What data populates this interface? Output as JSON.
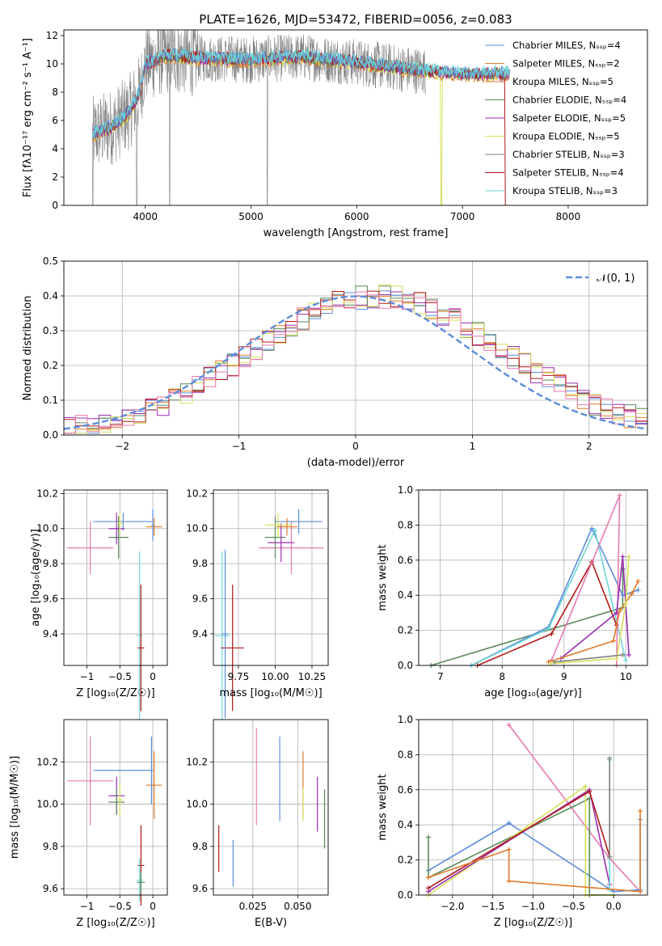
{
  "title": "PLATE=1626, MJD=53472, FIBERID=0056, z=0.083",
  "colors": {
    "chabrier_miles": "#5b8ddb",
    "salpeter_miles": "#e07b2c",
    "kroupa_miles": "#e07b2c",
    "chabrier_elodie": "#5a8a5a",
    "salpeter_elodie": "#9a2fb0",
    "kroupa_elodie": "#d6e05a",
    "chabrier_stelib": "#808080",
    "salpeter_stelib": "#b01818",
    "kroupa_stelib": "#6fd6d6",
    "pink": "#e87ab0",
    "normal_curve": "#5b8ddb"
  },
  "chart_data": [
    {
      "type": "line",
      "xlabel": "wavelength [Angstrom, rest frame]",
      "ylabel": "Flux [fλ10⁻¹⁷ erg cm⁻² s⁻¹ A⁻¹]",
      "xlim": [
        3230,
        8750
      ],
      "ylim": [
        0,
        12.4
      ],
      "xticks": [
        4000,
        5000,
        6000,
        7000,
        8000
      ],
      "yticks": [
        0,
        2,
        4,
        6,
        8,
        10,
        12
      ],
      "legend_position": "top-right",
      "series": [
        {
          "name": "Chabrier MILES, N_SSP=4",
          "color": "#5b8ddb"
        },
        {
          "name": "Salpeter MILES, N_SSP=2",
          "color": "#e07b2c"
        },
        {
          "name": "Kroupa MILES, N_SSP=5",
          "color": "#e07b2c"
        },
        {
          "name": "Chabrier ELODIE, N_SSP=4",
          "color": "#5a8a5a"
        },
        {
          "name": "Salpeter ELODIE, N_SSP=5",
          "color": "#9a2fb0"
        },
        {
          "name": "Kroupa ELODIE, N_SSP=5",
          "color": "#d6e05a"
        },
        {
          "name": "Chabrier STELIB, N_SSP=3",
          "color": "#808080"
        },
        {
          "name": "Salpeter STELIB, N_SSP=4",
          "color": "#b01818"
        },
        {
          "name": "Kroupa STELIB, N_SSP=3",
          "color": "#6fd6d6"
        }
      ],
      "continuum": {
        "x": [
          3500,
          3700,
          3850,
          3950,
          4000,
          4200,
          4500,
          5000,
          5500,
          6000,
          6500,
          7000,
          7500
        ],
        "y": [
          5.0,
          5.6,
          6.6,
          8.0,
          10.0,
          10.6,
          10.4,
          10.3,
          10.5,
          10.1,
          9.6,
          9.3,
          9.3
        ]
      },
      "dropouts_x": [
        3505,
        3920,
        4230,
        5155,
        6800,
        7420
      ]
    },
    {
      "type": "histogram",
      "xlabel": "(data-model)/error",
      "ylabel": "Normed distribution",
      "xlim": [
        -2.5,
        2.5
      ],
      "ylim": [
        0,
        0.5
      ],
      "xticks": [
        -2,
        -1,
        0,
        1,
        2
      ],
      "yticks": [
        0.0,
        0.1,
        0.2,
        0.3,
        0.4,
        0.5
      ],
      "legend_position": "top-right",
      "legend_label": "𝒩(0, 1)",
      "bin_width": 0.1,
      "bin_start": -2.5,
      "reference": [
        0.018,
        0.022,
        0.028,
        0.035,
        0.043,
        0.052,
        0.063,
        0.075,
        0.089,
        0.104,
        0.121,
        0.14,
        0.16,
        0.181,
        0.204,
        0.226,
        0.249,
        0.271,
        0.293,
        0.314,
        0.333,
        0.35,
        0.365,
        0.378,
        0.388,
        0.395,
        0.399,
        0.399,
        0.395,
        0.388,
        0.378,
        0.365,
        0.35,
        0.333,
        0.314,
        0.293,
        0.271,
        0.249,
        0.226,
        0.204,
        0.181,
        0.16,
        0.14,
        0.121,
        0.104,
        0.089,
        0.075,
        0.063,
        0.052,
        0.043
      ]
    },
    {
      "type": "scatter",
      "xlabel": "Z [log₁₀(Z/Z☉)]",
      "ylabel": "age  [log₁₀(age/yr)]",
      "xlim": [
        -1.35,
        0.22
      ],
      "ylim": [
        9.22,
        10.22
      ],
      "xticks": [
        -1,
        -0.5,
        0
      ],
      "xticklabels": [
        "−1",
        "−0.5",
        "0"
      ],
      "yticks": [
        9.4,
        9.6,
        9.8,
        10.0,
        10.2
      ],
      "points": [
        {
          "x": -0.95,
          "y": 9.89,
          "xerr": 0.35,
          "yerr": 0.15,
          "color": "#e87ab0"
        },
        {
          "x": -0.45,
          "y": 10.04,
          "xerr": 0.45,
          "yerr": 0.05,
          "color": "#5b8ddb"
        },
        {
          "x": -0.52,
          "y": 9.95,
          "xerr": 0.15,
          "yerr": 0.12,
          "color": "#5a8a5a"
        },
        {
          "x": -0.55,
          "y": 10.0,
          "xerr": 0.12,
          "yerr": 0.09,
          "color": "#9a2fb0"
        },
        {
          "x": -0.5,
          "y": 10.03,
          "xerr": 0.05,
          "yerr": 0.06,
          "color": "#d6e05a"
        },
        {
          "x": -0.2,
          "y": 9.39,
          "xerr": 0.05,
          "yerr": 0.48,
          "color": "#6fd6d6"
        },
        {
          "x": -0.18,
          "y": 9.32,
          "xerr": 0.05,
          "yerr": 0.36,
          "color": "#b01818"
        },
        {
          "x": 0.02,
          "y": 10.01,
          "xerr": 0.12,
          "yerr": 0.05,
          "color": "#e07b2c"
        },
        {
          "x": 0.0,
          "y": 10.02,
          "xerr": 0.02,
          "yerr": 0.09,
          "color": "#5b8ddb"
        }
      ]
    },
    {
      "type": "scatter",
      "xlabel": "mass [log₁₀(M/M☉)]",
      "ylabel": "",
      "xlim": [
        9.58,
        10.36
      ],
      "ylim": [
        9.22,
        10.22
      ],
      "xticks": [
        9.75,
        10.0,
        10.25
      ],
      "xticklabels": [
        "9.75",
        "10.00",
        "10.25"
      ],
      "yticks": [
        9.4,
        9.6,
        9.8,
        10.0,
        10.2
      ],
      "points": [
        {
          "x": 10.11,
          "y": 9.89,
          "xerr": 0.22,
          "yerr": 0.15,
          "color": "#e87ab0"
        },
        {
          "x": 10.16,
          "y": 10.04,
          "xerr": 0.16,
          "yerr": 0.07,
          "color": "#5b8ddb"
        },
        {
          "x": 10.0,
          "y": 9.95,
          "xerr": 0.07,
          "yerr": 0.12,
          "color": "#5a8a5a"
        },
        {
          "x": 10.04,
          "y": 9.92,
          "xerr": 0.09,
          "yerr": 0.11,
          "color": "#9a2fb0"
        },
        {
          "x": 10.02,
          "y": 10.02,
          "xerr": 0.09,
          "yerr": 0.07,
          "color": "#d6e05a"
        },
        {
          "x": 9.64,
          "y": 9.39,
          "xerr": 0.05,
          "yerr": 0.48,
          "color": "#6fd6d6"
        },
        {
          "x": 9.71,
          "y": 9.32,
          "xerr": 0.08,
          "yerr": 0.36,
          "color": "#b01818"
        },
        {
          "x": 10.08,
          "y": 10.01,
          "xerr": 0.07,
          "yerr": 0.05,
          "color": "#e07b2c"
        },
        {
          "x": 9.66,
          "y": 9.4,
          "xerr": 0.02,
          "yerr": 0.48,
          "color": "#5b8ddb"
        }
      ]
    },
    {
      "type": "line",
      "xlabel": "age  [log₁₀(age/yr)]",
      "ylabel": "mass weight",
      "xlim": [
        6.65,
        10.35
      ],
      "ylim": [
        0,
        1
      ],
      "xticks": [
        7,
        8,
        9,
        10
      ],
      "yticks": [
        0.0,
        0.2,
        0.4,
        0.6,
        0.8,
        1.0
      ],
      "series": [
        {
          "color": "#5a8a5a",
          "x": [
            6.85,
            9.95,
            9.95
          ],
          "y": [
            0.0,
            0.33,
            0.55
          ]
        },
        {
          "color": "#5b8ddb",
          "x": [
            7.5,
            8.75,
            9.45,
            9.95,
            10.2
          ],
          "y": [
            0.0,
            0.22,
            0.78,
            0.4,
            0.43
          ]
        },
        {
          "color": "#6fd6d6",
          "x": [
            7.5,
            8.75,
            9.5,
            10.0
          ],
          "y": [
            0.0,
            0.21,
            0.77,
            0.03
          ]
        },
        {
          "color": "#b01818",
          "x": [
            7.6,
            8.8,
            9.45,
            9.85
          ],
          "y": [
            0.0,
            0.18,
            0.59,
            0.23
          ]
        },
        {
          "color": "#e87ab0",
          "x": [
            8.8,
            9.9,
            9.85
          ],
          "y": [
            0.03,
            0.97,
            0.0
          ]
        },
        {
          "color": "#9a2fb0",
          "x": [
            8.95,
            9.85,
            9.95,
            10.05
          ],
          "y": [
            0.04,
            0.3,
            0.62,
            0.06
          ]
        },
        {
          "color": "#e07b2c",
          "x": [
            8.75,
            9.8,
            9.9,
            10.1,
            10.2
          ],
          "y": [
            0.02,
            0.14,
            0.31,
            0.41,
            0.48
          ]
        },
        {
          "color": "#d6e05a",
          "x": [
            8.8,
            9.85,
            10.0,
            10.05
          ],
          "y": [
            0.01,
            0.04,
            0.35,
            0.62
          ]
        },
        {
          "color": "#808080",
          "x": [
            8.85,
            9.95
          ],
          "y": [
            0.02,
            0.06
          ]
        }
      ]
    },
    {
      "type": "scatter",
      "xlabel": "Z [log₁₀(Z/Z☉)]",
      "ylabel": "mass [log₁₀(M/M☉)]",
      "xlim": [
        -1.35,
        0.22
      ],
      "ylim": [
        9.57,
        10.4
      ],
      "xticks": [
        -1,
        -0.5,
        0
      ],
      "xticklabels": [
        "−1",
        "−0.5",
        "0"
      ],
      "yticks": [
        9.6,
        9.8,
        10.0,
        10.2
      ],
      "points": [
        {
          "x": -0.95,
          "y": 10.11,
          "xerr": 0.35,
          "yerr": 0.21,
          "color": "#e87ab0"
        },
        {
          "x": -0.45,
          "y": 10.16,
          "xerr": 0.45,
          "yerr": 0.0,
          "color": "#5b8ddb"
        },
        {
          "x": -0.55,
          "y": 10.04,
          "xerr": 0.12,
          "yerr": 0.09,
          "color": "#9a2fb0"
        },
        {
          "x": -0.55,
          "y": 10.01,
          "xerr": 0.12,
          "yerr": 0.06,
          "color": "#5a8a5a"
        },
        {
          "x": -0.5,
          "y": 10.02,
          "xerr": 0.05,
          "yerr": 0.08,
          "color": "#d6e05a"
        },
        {
          "x": -0.18,
          "y": 9.71,
          "xerr": 0.05,
          "yerr": 0.19,
          "color": "#b01818"
        },
        {
          "x": -0.2,
          "y": 9.64,
          "xerr": 0.05,
          "yerr": 0.1,
          "color": "#6fd6d6"
        },
        {
          "x": -0.18,
          "y": 9.63,
          "xerr": 0.06,
          "yerr": 0.05,
          "color": "#5a8a5a"
        },
        {
          "x": 0.02,
          "y": 10.09,
          "xerr": 0.12,
          "yerr": 0.16,
          "color": "#e07b2c"
        },
        {
          "x": -0.02,
          "y": 10.16,
          "xerr": 0.02,
          "yerr": 0.16,
          "color": "#5b8ddb"
        }
      ]
    },
    {
      "type": "errorbar",
      "xlabel": "E(B-V)",
      "ylabel": "",
      "xlim": [
        0.003,
        0.067
      ],
      "ylim": [
        9.57,
        10.4
      ],
      "xticks": [
        0.025,
        0.05
      ],
      "xticklabels": [
        "0.025",
        "0.050"
      ],
      "yticks": [
        9.6,
        9.8,
        10.0,
        10.2
      ],
      "points": [
        {
          "x": 0.006,
          "y": 9.79,
          "yerr": 0.11,
          "color": "#b01818"
        },
        {
          "x": 0.014,
          "y": 9.72,
          "yerr": 0.11,
          "color": "#5b8ddb"
        },
        {
          "x": 0.027,
          "y": 10.13,
          "yerr": 0.23,
          "color": "#e87ab0"
        },
        {
          "x": 0.04,
          "y": 10.12,
          "yerr": 0.2,
          "color": "#5b8ddb"
        },
        {
          "x": 0.053,
          "y": 10.09,
          "yerr": 0.16,
          "color": "#e07b2c"
        },
        {
          "x": 0.053,
          "y": 10.0,
          "yerr": 0.08,
          "color": "#d6e05a"
        },
        {
          "x": 0.061,
          "y": 10.0,
          "yerr": 0.13,
          "color": "#9a2fb0"
        },
        {
          "x": 0.065,
          "y": 9.93,
          "yerr": 0.14,
          "color": "#5a8a5a"
        }
      ]
    },
    {
      "type": "line",
      "xlabel": "Z [log₁₀(Z/Z☉)]",
      "ylabel": "mass weight",
      "xlim": [
        -2.42,
        0.42
      ],
      "ylim": [
        0,
        1
      ],
      "xticks": [
        -2.0,
        -1.5,
        -1.0,
        -0.5,
        0.0
      ],
      "xticklabels": [
        "−2.0",
        "−1.5",
        "−1.0",
        "−0.5",
        "0.0"
      ],
      "yticks": [
        0.0,
        0.2,
        0.4,
        0.6,
        0.8,
        1.0
      ],
      "series": [
        {
          "color": "#e87ab0",
          "x": [
            -1.3,
            -0.05,
            0.33
          ],
          "y": [
            0.97,
            0.21,
            0.02
          ]
        },
        {
          "color": "#5b8ddb",
          "x": [
            -2.3,
            -1.3,
            0.0,
            0.33,
            0.33
          ],
          "y": [
            0.14,
            0.41,
            0.02,
            0.03,
            0.43
          ]
        },
        {
          "color": "#5a8a5a",
          "x": [
            -2.3,
            -2.3,
            -0.3,
            -0.3,
            0.0
          ],
          "y": [
            0.33,
            0.1,
            0.55,
            0.0,
            0.0
          ]
        },
        {
          "color": "#d6e05a",
          "x": [
            -2.3,
            -0.35,
            -0.35,
            0.0
          ],
          "y": [
            0.0,
            0.62,
            0.0,
            0.0
          ]
        },
        {
          "color": "#9a2fb0",
          "x": [
            -2.3,
            -0.3,
            -0.05
          ],
          "y": [
            0.02,
            0.6,
            0.06
          ]
        },
        {
          "color": "#b01818",
          "x": [
            -2.3,
            -0.3,
            -0.05
          ],
          "y": [
            0.04,
            0.59,
            0.22
          ]
        },
        {
          "color": "#6fd6d6",
          "x": [
            -0.05,
            -0.05,
            -0.05
          ],
          "y": [
            0.77,
            0.22,
            0.03
          ]
        },
        {
          "color": "#e07b2c",
          "x": [
            -2.3,
            -1.3,
            -1.3,
            0.33,
            0.33
          ],
          "y": [
            0.1,
            0.26,
            0.08,
            0.02,
            0.48
          ]
        },
        {
          "color": "#808080",
          "x": [
            -0.05,
            -0.05
          ],
          "y": [
            0.78,
            0.22
          ]
        }
      ]
    }
  ]
}
